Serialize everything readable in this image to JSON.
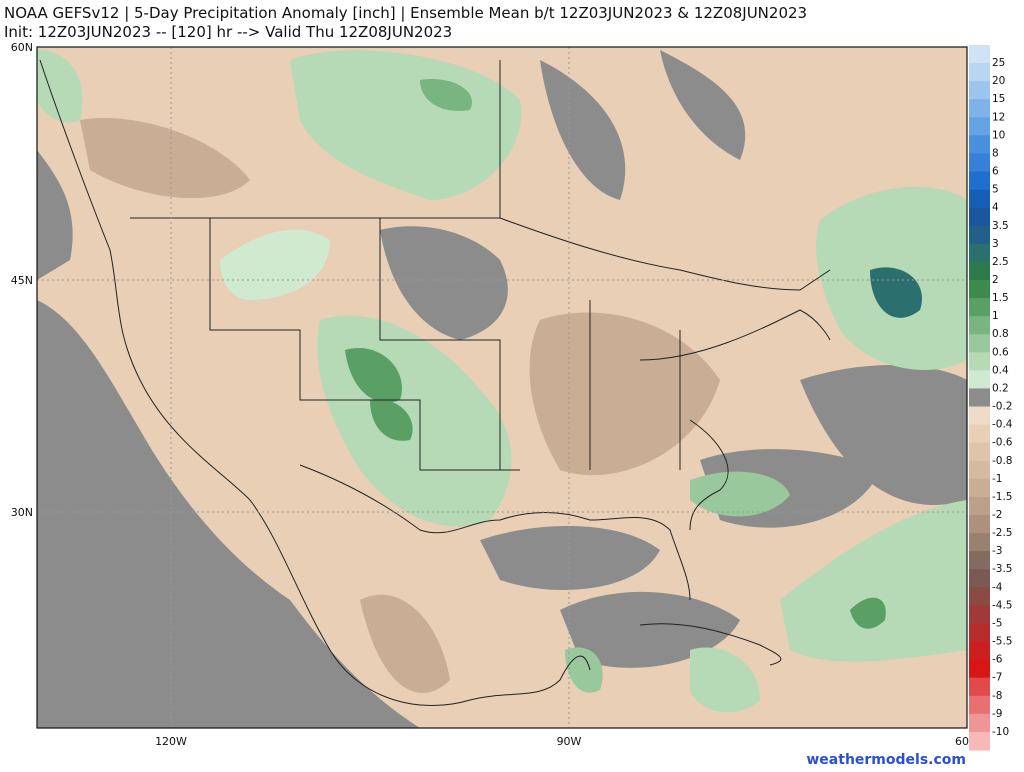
{
  "header": {
    "line1": "NOAA GEFSv12 | 5-Day Precipitation Anomaly [inch] | Ensemble Mean b/t 12Z03JUN2023 & 12Z08JUN2023",
    "line2": "Init: 12Z03JUN2023 -- [120] hr --> Valid Thu 12Z08JUN2023"
  },
  "map": {
    "lat_labels": [
      "60N",
      "45N",
      "30N"
    ],
    "lon_labels": [
      "120W",
      "90W",
      "60"
    ]
  },
  "colorbar": {
    "levels": [
      25,
      20,
      15,
      12,
      10,
      8,
      6,
      5,
      4,
      3.5,
      3,
      2.5,
      2,
      1.5,
      1,
      0.8,
      0.6,
      0.4,
      0.2,
      -0.2,
      -0.4,
      -0.6,
      -0.8,
      -1,
      -1.5,
      -2,
      -2.5,
      -3,
      -3.5,
      -4,
      -4.5,
      -5,
      -5.5,
      -6,
      -7,
      -8,
      -9,
      -10
    ],
    "colors": [
      "#cfe3f5",
      "#b8d6f2",
      "#9cc5ee",
      "#7fb2e8",
      "#66a3e3",
      "#4a8fdc",
      "#3680d6",
      "#1f6fce",
      "#155fb9",
      "#1c55a0",
      "#245f88",
      "#2b6f6f",
      "#2f7a4a",
      "#3c8a4c",
      "#5aa064",
      "#78b580",
      "#98c89c",
      "#b5dab5",
      "#d0ead0",
      "#8c8c8c",
      "#efdcc6",
      "#e8cfb6",
      "#dfc4aa",
      "#d5b9a0",
      "#c9ad95",
      "#bda08a",
      "#ad917d",
      "#9a8070",
      "#846b60",
      "#7a5a52",
      "#8c4a45",
      "#a03a38",
      "#b82c2c",
      "#cc1f1f",
      "#d91515",
      "#e04a4a",
      "#e87070",
      "#f09595",
      "#f7b8b8"
    ]
  },
  "credit": "weathermodels.com"
}
